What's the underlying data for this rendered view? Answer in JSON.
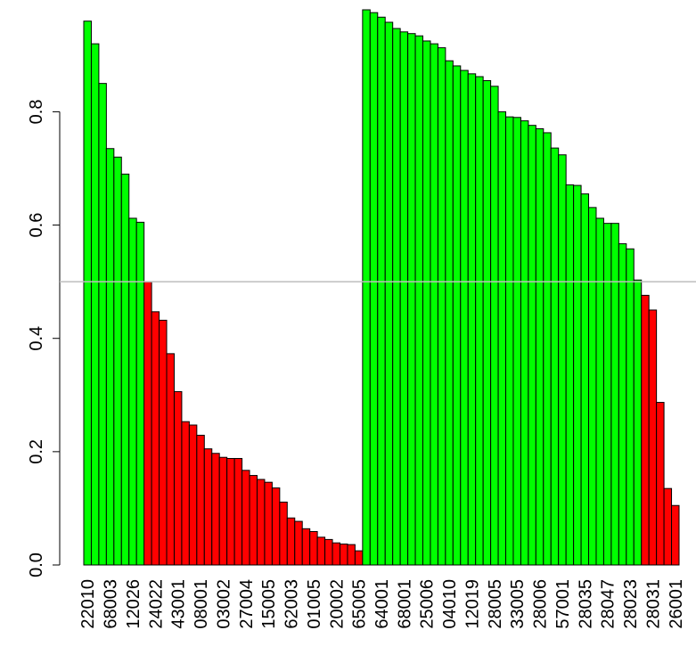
{
  "chart_data": {
    "type": "bar",
    "categories": [
      "22010",
      null,
      null,
      "68003",
      null,
      null,
      "12026",
      null,
      null,
      "24022",
      null,
      null,
      "43001",
      null,
      null,
      "08001",
      null,
      null,
      "03002",
      null,
      null,
      "27004",
      null,
      null,
      "15005",
      null,
      null,
      "62003",
      null,
      null,
      "01005",
      null,
      null,
      "20002",
      null,
      null,
      "65005",
      null,
      null,
      "64001",
      null,
      null,
      "68001",
      null,
      null,
      "25006",
      null,
      null,
      "04010",
      null,
      null,
      "12019",
      null,
      null,
      "28005",
      null,
      null,
      "33005",
      null,
      null,
      "28006",
      null,
      null,
      "57001",
      null,
      null,
      "28035",
      null,
      null,
      "28047",
      null,
      null,
      "28023",
      null,
      null,
      "28031",
      null,
      null,
      "26001"
    ],
    "values": [
      0.96,
      0.92,
      0.85,
      0.735,
      0.72,
      0.69,
      0.612,
      0.605,
      0.5,
      0.447,
      0.432,
      0.373,
      0.306,
      0.253,
      0.247,
      0.229,
      0.205,
      0.197,
      0.19,
      0.188,
      0.188,
      0.167,
      0.158,
      0.151,
      0.146,
      0.136,
      0.111,
      0.083,
      0.077,
      0.064,
      0.059,
      0.049,
      0.045,
      0.039,
      0.037,
      0.036,
      0.025,
      0.98,
      0.975,
      0.967,
      0.958,
      0.947,
      0.941,
      0.938,
      0.934,
      0.925,
      0.92,
      0.913,
      0.89,
      0.881,
      0.873,
      0.867,
      0.862,
      0.855,
      0.845,
      0.8,
      0.791,
      0.79,
      0.784,
      0.776,
      0.77,
      0.763,
      0.736,
      0.724,
      0.671,
      0.67,
      0.655,
      0.631,
      0.612,
      0.603,
      0.603,
      0.567,
      0.558,
      0.503,
      0.476,
      0.45,
      0.287,
      0.135,
      0.105
    ],
    "color_above": "#00ff00",
    "color_below": "#ff0000",
    "hline": 0.5,
    "hline_color": "#bebebe",
    "ylim": [
      0,
      0.98
    ],
    "yticks": [
      {
        "value": 0,
        "label": "0.0"
      },
      0.2,
      0.4,
      0.6,
      0.8
    ]
  }
}
